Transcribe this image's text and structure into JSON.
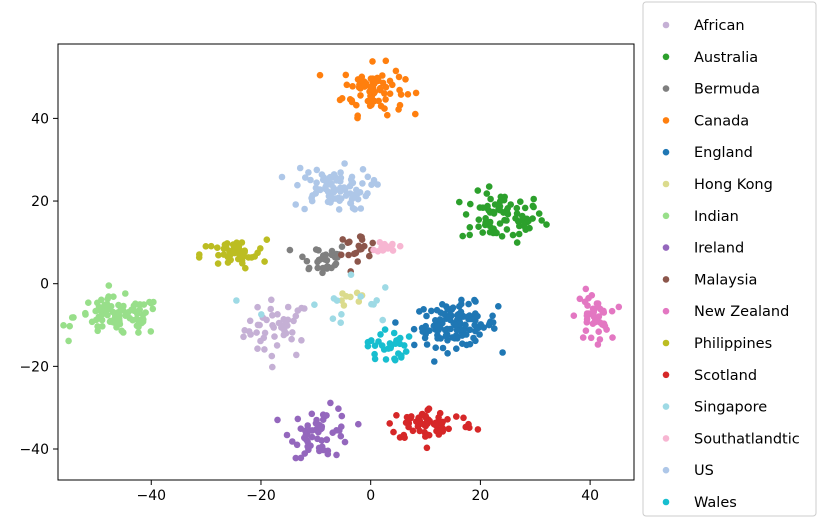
{
  "chart_data": {
    "type": "scatter",
    "title": "",
    "xlabel": "",
    "ylabel": "",
    "xlim": [
      -57,
      48
    ],
    "ylim": [
      -47.5,
      58
    ],
    "xticks": [
      -40,
      -20,
      0,
      20,
      40
    ],
    "yticks": [
      -40,
      -20,
      0,
      20,
      40
    ],
    "grid": false,
    "legend": "right-outside",
    "series": [
      {
        "name": "African",
        "color": "#c5b0d5",
        "cx": -17,
        "cy": -11,
        "sx": 3,
        "sy": 3.5,
        "n": 45
      },
      {
        "name": "Australia",
        "color": "#2ca02c",
        "cx": 24,
        "cy": 16,
        "sx": 3.8,
        "sy": 3,
        "n": 75
      },
      {
        "name": "Bermuda",
        "color": "#7f7f7f",
        "cx": -9,
        "cy": 6,
        "sx": 2.5,
        "sy": 2,
        "n": 32
      },
      {
        "name": "Canada",
        "color": "#ff7f0e",
        "cx": 0.5,
        "cy": 47,
        "sx": 2.8,
        "sy": 3,
        "n": 80
      },
      {
        "name": "England",
        "color": "#1f77b4",
        "cx": 15.5,
        "cy": -10,
        "sx": 3.8,
        "sy": 2.6,
        "n": 115
      },
      {
        "name": "Hong Kong",
        "color": "#dbdb8d",
        "cx": -4,
        "cy": -3,
        "sx": 2,
        "sy": 2,
        "n": 8
      },
      {
        "name": "Indian",
        "color": "#98df8a",
        "cx": -46,
        "cy": -8,
        "sx": 4,
        "sy": 2.3,
        "n": 90
      },
      {
        "name": "Ireland",
        "color": "#9467bd",
        "cx": -9,
        "cy": -36,
        "sx": 2.8,
        "sy": 3,
        "n": 60
      },
      {
        "name": "Malaysia",
        "color": "#8c564b",
        "cx": -2.5,
        "cy": 9,
        "sx": 2,
        "sy": 1.5,
        "n": 20
      },
      {
        "name": "New Zealand",
        "color": "#e377c2",
        "cx": 40.5,
        "cy": -8,
        "sx": 1.5,
        "sy": 3,
        "n": 42
      },
      {
        "name": "Philippines",
        "color": "#bcbd22",
        "cx": -25,
        "cy": 7,
        "sx": 3,
        "sy": 1.8,
        "n": 45
      },
      {
        "name": "Scotland",
        "color": "#d62728",
        "cx": 11,
        "cy": -34,
        "sx": 4,
        "sy": 2,
        "n": 68
      },
      {
        "name": "Singapore",
        "color": "#9edae5",
        "cx": -7,
        "cy": -5,
        "sx": 6,
        "sy": 4,
        "n": 15
      },
      {
        "name": "Southatlandtic",
        "color": "#f7b6d2",
        "cx": 3,
        "cy": 9,
        "sx": 1,
        "sy": 0.7,
        "n": 14
      },
      {
        "name": "US",
        "color": "#aec7e8",
        "cx": -7,
        "cy": 23,
        "sx": 3.5,
        "sy": 2.6,
        "n": 85
      },
      {
        "name": "Wales",
        "color": "#17becf",
        "cx": 3,
        "cy": -15,
        "sx": 1.8,
        "sy": 2.2,
        "n": 32
      }
    ]
  }
}
